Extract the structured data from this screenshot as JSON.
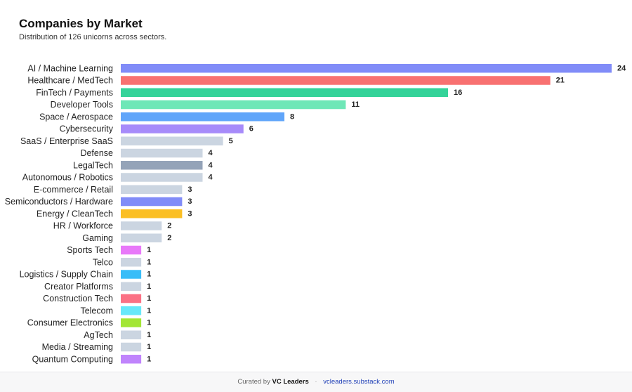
{
  "header": {
    "title": "Companies by Market",
    "subtitle": "Distribution of 126 unicorns across sectors."
  },
  "chart_data": {
    "type": "bar",
    "orientation": "horizontal",
    "title": "Companies by Market",
    "subtitle": "Distribution of 126 unicorns across sectors.",
    "xlabel": "",
    "ylabel": "",
    "xlim": [
      0,
      24
    ],
    "grid": false,
    "categories": [
      "AI / Machine Learning",
      "Healthcare / MedTech",
      "FinTech / Payments",
      "Developer Tools",
      "Space / Aerospace",
      "Cybersecurity",
      "SaaS / Enterprise SaaS",
      "Defense",
      "LegalTech",
      "Autonomous / Robotics",
      "E-commerce / Retail",
      "Semiconductors / Hardware",
      "Energy / CleanTech",
      "HR / Workforce",
      "Gaming",
      "Sports Tech",
      "Telco",
      "Logistics / Supply Chain",
      "Creator Platforms",
      "Construction Tech",
      "Telecom",
      "Consumer Electronics",
      "AgTech",
      "Media / Streaming",
      "Quantum Computing"
    ],
    "values": [
      24,
      21,
      16,
      11,
      8,
      6,
      5,
      4,
      4,
      4,
      3,
      3,
      3,
      2,
      2,
      1,
      1,
      1,
      1,
      1,
      1,
      1,
      1,
      1,
      1
    ],
    "colors": [
      "#818cf8",
      "#f87171",
      "#34d399",
      "#6ee7b7",
      "#60a5fa",
      "#a78bfa",
      "#cbd5e1",
      "#cbd5e1",
      "#94a3b8",
      "#cbd5e1",
      "#cbd5e1",
      "#818cf8",
      "#fbbf24",
      "#cbd5e1",
      "#cbd5e1",
      "#e879f9",
      "#cbd5e1",
      "#38bdf8",
      "#cbd5e1",
      "#fb7185",
      "#67e8f9",
      "#a3e635",
      "#cbd5e1",
      "#cbd5e1",
      "#c084fc"
    ]
  },
  "footer": {
    "prefix": "Curated by",
    "brand": "VC Leaders",
    "separator": "·",
    "link": "vcleaders.substack.com"
  }
}
